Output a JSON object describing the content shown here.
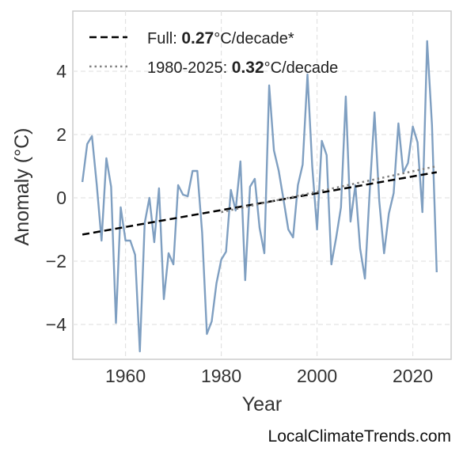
{
  "chart_data": {
    "type": "line",
    "title": "",
    "xlabel": "Year",
    "ylabel": "Anomaly (°C)",
    "xlim": [
      1949,
      2028
    ],
    "ylim": [
      -5.1,
      5.9
    ],
    "xticks": [
      1960,
      1980,
      2000,
      2020
    ],
    "xtick_labels": [
      "1960",
      "1980",
      "2000",
      "2020"
    ],
    "yticks": [
      -4,
      -2,
      0,
      2,
      4
    ],
    "ytick_labels": [
      "−4",
      "−2",
      "0",
      "2",
      "4"
    ],
    "grid": true,
    "legend_position": "top-left",
    "series": [
      {
        "color": "#7f9fc1",
        "style": "solid",
        "x": [
          1951,
          1952,
          1953,
          1954,
          1955,
          1956,
          1957,
          1958,
          1959,
          1960,
          1961,
          1962,
          1963,
          1964,
          1965,
          1966,
          1967,
          1968,
          1969,
          1970,
          1971,
          1972,
          1973,
          1974,
          1975,
          1976,
          1977,
          1978,
          1979,
          1980,
          1981,
          1982,
          1983,
          1984,
          1985,
          1986,
          1987,
          1988,
          1989,
          1990,
          1991,
          1992,
          1993,
          1994,
          1995,
          1996,
          1997,
          1998,
          1999,
          2000,
          2001,
          2002,
          2003,
          2004,
          2005,
          2006,
          2007,
          2008,
          2009,
          2010,
          2011,
          2012,
          2013,
          2014,
          2015,
          2016,
          2017,
          2018,
          2019,
          2020,
          2021,
          2022,
          2023,
          2024,
          2025
        ],
        "values": [
          0.5,
          1.7,
          1.95,
          0.4,
          -1.35,
          1.25,
          0.35,
          -3.95,
          -0.3,
          -1.35,
          -1.35,
          -1.8,
          -4.85,
          -0.8,
          0.0,
          -1.4,
          0.3,
          -3.2,
          -1.75,
          -2.1,
          0.4,
          0.1,
          0.05,
          0.85,
          0.85,
          -1.1,
          -4.3,
          -3.9,
          -2.7,
          -1.95,
          -1.7,
          0.25,
          -0.4,
          1.15,
          -2.6,
          0.35,
          0.6,
          -0.95,
          -1.75,
          3.55,
          1.5,
          0.85,
          -0.05,
          -1.0,
          -1.25,
          0.4,
          1.05,
          3.9,
          1.0,
          -1.0,
          1.8,
          1.35,
          -2.1,
          -1.25,
          -0.3,
          3.2,
          -0.75,
          0.4,
          -1.6,
          -2.55,
          0.2,
          2.7,
          -0.1,
          -1.75,
          -0.5,
          0.15,
          2.35,
          0.8,
          1.1,
          2.25,
          1.75,
          -0.45,
          4.95,
          2.3,
          -2.35
        ]
      },
      {
        "name": "Full: 0.27°C/decade*",
        "color": "#000000",
        "style": "dashed",
        "x": [
          1951,
          2025
        ],
        "values": [
          -1.16,
          0.81
        ]
      },
      {
        "name": "1980-2025: 0.32°C/decade",
        "color": "#808080",
        "style": "dotted",
        "x": [
          1980,
          2025
        ],
        "values": [
          -0.45,
          1.0
        ]
      }
    ]
  },
  "legend": [
    {
      "prefix": "Full: ",
      "value": "0.27",
      "suffix": "°C/decade*"
    },
    {
      "prefix": "1980-2025: ",
      "value": "0.32",
      "suffix": "°C/decade"
    }
  ],
  "credit": "LocalClimateTrends.com"
}
